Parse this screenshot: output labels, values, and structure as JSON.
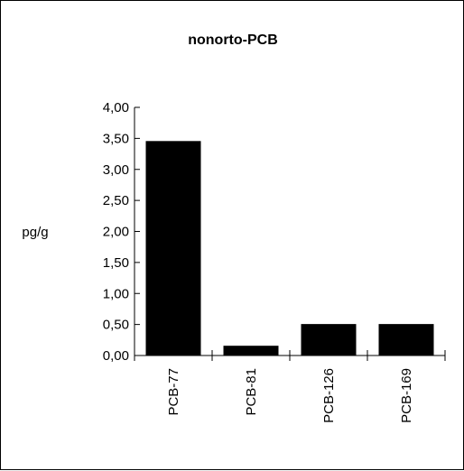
{
  "chart_data": {
    "type": "bar",
    "title": "nonorto-PCB",
    "xlabel": "",
    "ylabel": "pg/g",
    "categories": [
      "PCB-77",
      "PCB-81",
      "PCB-126",
      "PCB-169"
    ],
    "values": [
      3.45,
      0.15,
      0.5,
      0.5
    ],
    "ylim": [
      0,
      4
    ],
    "ytick_labels": [
      "0,00",
      "0,50",
      "1,00",
      "1,50",
      "2,00",
      "2,50",
      "3,00",
      "3,50",
      "4,00"
    ],
    "grid": false,
    "legend": "none",
    "bar_color": "#000000"
  }
}
